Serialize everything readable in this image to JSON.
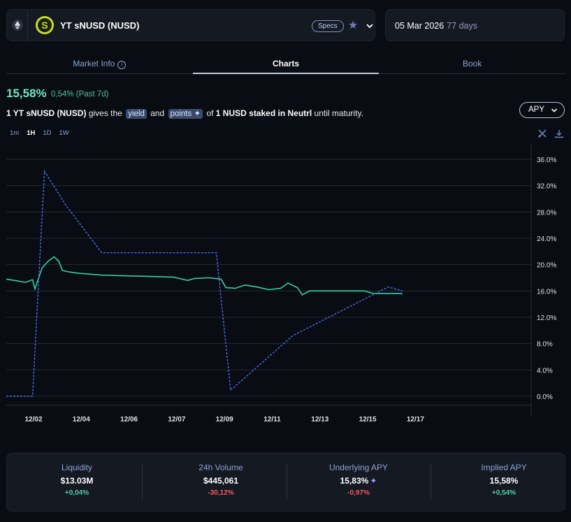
{
  "header": {
    "token_name": "YT sNUSD (NUSD)",
    "specs_label": "Specs",
    "logo_letter": "S",
    "icons": [
      "ethereum-icon",
      "star-icon",
      "chevron-down-icon"
    ]
  },
  "maturity": {
    "date": "05 Mar 2026",
    "days": "77 days"
  },
  "tabs": [
    {
      "label": "Market Info",
      "active": false
    },
    {
      "label": "Charts",
      "active": true
    },
    {
      "label": "Book",
      "active": false
    }
  ],
  "summary": {
    "apy_value": "15,58%",
    "apy_change": "0,54% (Past 7d)",
    "desc_prefix": "1 YT sNUSD (NUSD)",
    "desc_gives": "gives the",
    "desc_yield": "yield",
    "desc_and": "and",
    "desc_points": "points",
    "desc_of": "of",
    "desc_asset": "1 NUSD staked in Neutrl",
    "desc_suffix": "until maturity."
  },
  "metric_select": {
    "label": "APY"
  },
  "intervals": [
    {
      "label": "1m",
      "active": false
    },
    {
      "label": "1H",
      "active": true
    },
    {
      "label": "1D",
      "active": false
    },
    {
      "label": "1W",
      "active": false
    }
  ],
  "colors": {
    "implied_line": "#34d1a4",
    "underlying_line": "#4e6df0",
    "grid": "#232a36",
    "positive": "#4fd1a1",
    "negative": "#ef5a5a"
  },
  "chart_data": {
    "type": "line",
    "y_tick_labels": [
      "36.0%",
      "32.0%",
      "28.0%",
      "24.0%",
      "20.0%",
      "16.0%",
      "12.0%",
      "8.0%",
      "4.0%",
      "0.0%"
    ],
    "x_tick_labels": [
      "12/02",
      "12/04",
      "12/06",
      "12/07",
      "12/09",
      "12/11",
      "12/13",
      "12/15",
      "12/17"
    ],
    "ylim": [
      0,
      37
    ],
    "series": [
      {
        "style": "solid",
        "points": [
          [
            0,
            17.8
          ],
          [
            0.5,
            17.5
          ],
          [
            0.8,
            17.3
          ],
          [
            1.1,
            17.7
          ],
          [
            1.2,
            16.3
          ],
          [
            1.35,
            17.9
          ],
          [
            1.5,
            19.5
          ],
          [
            1.75,
            20.5
          ],
          [
            2.0,
            21.2
          ],
          [
            2.2,
            20.5
          ],
          [
            2.35,
            19.1
          ],
          [
            2.6,
            18.9
          ],
          [
            3.0,
            18.7
          ],
          [
            4.0,
            18.4
          ],
          [
            5.0,
            18.3
          ],
          [
            6.0,
            18.2
          ],
          [
            7.0,
            18.1
          ],
          [
            7.6,
            17.6
          ],
          [
            7.9,
            17.9
          ],
          [
            8.5,
            18.0
          ],
          [
            9.0,
            17.8
          ],
          [
            9.2,
            16.5
          ],
          [
            9.6,
            16.4
          ],
          [
            10.0,
            16.9
          ],
          [
            10.5,
            16.6
          ],
          [
            11.0,
            16.2
          ],
          [
            11.5,
            16.4
          ],
          [
            11.8,
            17.2
          ],
          [
            12.2,
            16.5
          ],
          [
            12.4,
            15.4
          ],
          [
            12.7,
            16.0
          ],
          [
            13.5,
            16.0
          ],
          [
            14.5,
            16.0
          ],
          [
            15.0,
            16.0
          ],
          [
            15.4,
            15.6
          ],
          [
            16.6,
            15.6
          ]
        ]
      },
      {
        "style": "dashed",
        "points": [
          [
            0,
            0.0
          ],
          [
            1.1,
            0.0
          ],
          [
            1.6,
            34.2
          ],
          [
            2.5,
            29.0
          ],
          [
            4.0,
            21.8
          ],
          [
            8.8,
            21.8
          ],
          [
            9.4,
            0.9
          ],
          [
            12.0,
            9.2
          ],
          [
            16.0,
            16.6
          ],
          [
            16.6,
            16.0
          ]
        ]
      }
    ]
  },
  "stats": [
    {
      "label": "Liquidity",
      "value": "$13.03M",
      "change": "+0,04%",
      "direction": "pos"
    },
    {
      "label": "24h Volume",
      "value": "$445,061",
      "change": "-30,12%",
      "direction": "neg"
    },
    {
      "label": "Underlying APY",
      "value": "15,83%",
      "change": "-0,97%",
      "direction": "neg"
    },
    {
      "label": "Implied APY",
      "value": "15,58%",
      "change": "+0,54%",
      "direction": "pos"
    }
  ]
}
